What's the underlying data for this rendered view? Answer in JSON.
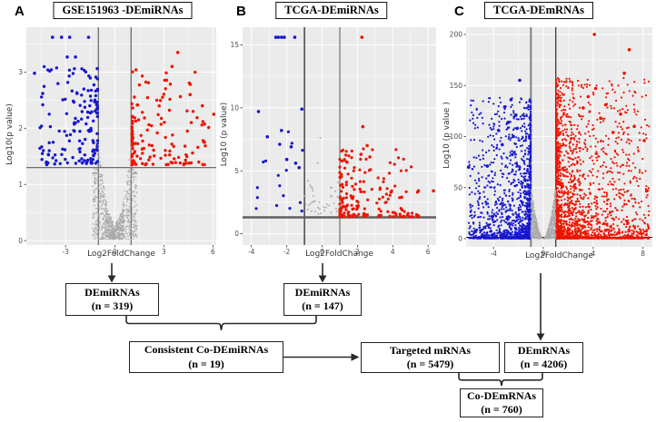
{
  "chart_data": [
    {
      "type": "scatter",
      "subtype": "volcano",
      "panel_label": "A",
      "title": "GSE151963 -DEmiRNAs",
      "xlabel": "Log2FoldChange",
      "ylabel": "Log10(p value)",
      "xlim": [
        -5.4,
        6.2
      ],
      "ylim": [
        -0.08,
        3.8
      ],
      "xticks": [
        -3,
        0,
        3,
        6
      ],
      "yticks": [
        0,
        1,
        2,
        3
      ],
      "grid": "on",
      "thresholds": {
        "vlines": [
          {
            "x": -1,
            "color": "#6e6e6e",
            "w": 1.3
          },
          {
            "x": 1,
            "color": "#6e6e6e",
            "w": 1.3
          }
        ],
        "hline": {
          "y": 1.3,
          "color": "#6e6e6e",
          "w": 1.3
        }
      },
      "colors": {
        "up": "#ee1400",
        "down": "#1717cf",
        "ns": "#ababab",
        "panel_bg": "#ebebeb",
        "grid": "#ffffff"
      },
      "clouds": [
        {
          "cls": "down",
          "n": 150,
          "x0": -4.6,
          "x1": -1.05,
          "side": "left",
          "xpow": 1.9,
          "y0": 1.35,
          "y1": 3.1,
          "ypow": 1.6,
          "r": 1.7
        },
        {
          "cls": "up",
          "n": 140,
          "x0": 1.05,
          "x1": 5.9,
          "side": "right",
          "xpow": 2.3,
          "y0": 1.35,
          "y1": 3.05,
          "ypow": 1.7,
          "r": 1.7
        },
        {
          "cls": "ns",
          "n": 700,
          "funnel": true,
          "xclip": 1.35,
          "xbias": 0.55,
          "y0": 0.02,
          "y1": 2.6,
          "upow": 1.2,
          "vpow": 1.4,
          "r": 0.8
        },
        {
          "cls": "ns",
          "n": 330,
          "funnel": true,
          "xclip": 0.55,
          "xbias": 1.3,
          "y0": 0.02,
          "y1": 0.55,
          "upow": 1.0,
          "vpow": 0.3,
          "r": 0.8
        }
      ],
      "highlights": {
        "down": [
          [
            -3.8,
            3.62
          ],
          [
            -3.25,
            3.62
          ],
          [
            -2.75,
            3.62
          ],
          [
            -1.6,
            3.62
          ],
          [
            -2.9,
            3.27
          ],
          [
            -2.4,
            3.27
          ],
          [
            -4.9,
            2.98
          ],
          [
            -4.4,
            2.62
          ]
        ],
        "up": [
          [
            3.85,
            3.35
          ],
          [
            3.5,
            3.1
          ],
          [
            6.05,
            2.25
          ],
          [
            5.35,
            2.4
          ],
          [
            4.6,
            2.6
          ]
        ],
        "ns": []
      }
    },
    {
      "type": "scatter",
      "subtype": "volcano",
      "panel_label": "B",
      "title": "TCGA-DEmiRNAs",
      "xlabel": "Log2FoldChange",
      "ylabel": "Log10 (p value)",
      "xlim": [
        -4.5,
        6.45
      ],
      "ylim": [
        -0.9,
        16.4
      ],
      "xticks": [
        -4,
        -2,
        0,
        2,
        4,
        6
      ],
      "yticks": [
        0,
        5,
        10,
        15
      ],
      "grid": "on",
      "thresholds": {
        "vlines": [
          {
            "x": -1,
            "color": "#2b2b2b",
            "w": 1.3
          },
          {
            "x": 1,
            "color": "#9a9a9a",
            "w": 1.8
          }
        ],
        "hline": {
          "y": 1.3,
          "color": "#5f5f5f",
          "w": 2.4
        }
      },
      "colors": {
        "up": "#ee1400",
        "down": "#1717cf",
        "ns": "#ababab",
        "panel_bg": "#ebebeb",
        "grid": "#ffffff"
      },
      "clouds": [
        {
          "cls": "down",
          "n": 16,
          "x0": -3.8,
          "x1": -1.1,
          "side": "left",
          "xpow": 1.2,
          "y0": 1.8,
          "y1": 8.3,
          "ypow": 1.4,
          "r": 1.6
        },
        {
          "cls": "up",
          "n": 175,
          "x0": 1.0,
          "x1": 5.5,
          "side": "right",
          "xpow": 2.5,
          "y0": 1.35,
          "y1": 6.8,
          "ypow": 2.6,
          "r": 1.6
        },
        {
          "cls": "ns",
          "n": 38,
          "funnel": true,
          "xclip": 1.0,
          "xbias": 0.8,
          "y0": 1.1,
          "y1": 4.8,
          "upow": 1.0,
          "vpow": 0.5,
          "r": 1.0
        }
      ],
      "highlights": {
        "down": [
          [
            -2.62,
            15.6
          ],
          [
            -2.48,
            15.6
          ],
          [
            -2.3,
            15.6
          ],
          [
            -2.14,
            15.6
          ],
          [
            -1.55,
            15.6
          ],
          [
            -3.6,
            9.7
          ],
          [
            -1.15,
            9.9
          ],
          [
            -2.3,
            8.2
          ],
          [
            -3.1,
            7.7
          ],
          [
            -2.4,
            7.1
          ],
          [
            -1.75,
            6.9
          ],
          [
            -2.0,
            5.9
          ],
          [
            -1.5,
            5.6
          ],
          [
            -1.3,
            5.25
          ]
        ],
        "up": [
          [
            2.25,
            15.6
          ],
          [
            2.3,
            8.5
          ],
          [
            2.55,
            7.0
          ],
          [
            2.2,
            6.3
          ],
          [
            2.7,
            6.1
          ],
          [
            5.45,
            3.4
          ],
          [
            6.3,
            3.4
          ],
          [
            5.35,
            1.5
          ],
          [
            4.5,
            2.9
          ],
          [
            3.9,
            3.3
          ]
        ],
        "ns": [
          [
            -0.1,
            7.6
          ],
          [
            -0.25,
            5.6
          ],
          [
            -0.8,
            4.2
          ]
        ]
      }
    },
    {
      "type": "scatter",
      "subtype": "volcano",
      "panel_label": "C",
      "title": "TCGA-DEmRNAs",
      "xlabel": "Log2FoldChange",
      "ylabel": "Log10 (p value )",
      "xlim": [
        -6.2,
        8.75
      ],
      "ylim": [
        -8,
        207
      ],
      "xticks": [
        -4,
        0,
        4,
        8
      ],
      "yticks": [
        0,
        50,
        100,
        150,
        200
      ],
      "grid": "on",
      "thresholds": {
        "vlines": [
          {
            "x": -1,
            "color": "#8a8a8a",
            "w": 2.2
          },
          {
            "x": 1,
            "color": "#2b2b2b",
            "w": 1.2
          }
        ],
        "hline": {
          "y": 1.3,
          "color": "#1a1a1a",
          "w": 1.0
        }
      },
      "colors": {
        "up": "#ee1400",
        "down": "#1717cf",
        "ns": "#ababab",
        "panel_bg": "#ebebeb",
        "grid": "#ffffff"
      },
      "clouds": [
        {
          "cls": "down",
          "n": 1500,
          "x0": -6.0,
          "x1": -1.02,
          "side": "left",
          "xpow": 2.6,
          "y0": 0.3,
          "y1": 138,
          "ypow": 3.1,
          "r": 1.1
        },
        {
          "cls": "up",
          "n": 2200,
          "x0": 1.02,
          "x1": 8.5,
          "side": "right",
          "xpow": 2.7,
          "y0": 0.3,
          "y1": 158,
          "ypow": 3.1,
          "r": 1.1
        },
        {
          "cls": "ns",
          "n": 800,
          "funnel": true,
          "xclip": 1.0,
          "xbias": 0.5,
          "y0": 0.1,
          "y1": 52,
          "upow": 1.0,
          "vpow": 1.8,
          "r": 0.8
        }
      ],
      "highlights": {
        "down": [
          [
            -1.9,
            155
          ],
          [
            -2.6,
            136
          ],
          [
            -3.1,
            129
          ],
          [
            -2.2,
            121
          ],
          [
            -2.8,
            114
          ],
          [
            -3.6,
            106
          ],
          [
            -2.4,
            100
          ],
          [
            -4.5,
            71
          ],
          [
            -6.0,
            70
          ],
          [
            -3.3,
            92
          ],
          [
            -2.1,
            108
          ]
        ],
        "up": [
          [
            4.1,
            200
          ],
          [
            6.9,
            185
          ],
          [
            6.5,
            162
          ],
          [
            4.2,
            147
          ],
          [
            3.6,
            139
          ],
          [
            5.0,
            131
          ],
          [
            6.2,
            122
          ],
          [
            7.3,
            110
          ],
          [
            8.1,
            96
          ],
          [
            4.6,
            118
          ],
          [
            3.2,
            128
          ],
          [
            5.6,
            104
          ]
        ],
        "ns": []
      }
    }
  ],
  "flowchart": {
    "boxes": [
      {
        "line1": "DEmiRNAs",
        "line2": "(n = 319)"
      },
      {
        "line1": "DEmiRNAs",
        "line2": "(n = 147)"
      },
      {
        "line1": "Consistent Co-DEmiRNAs",
        "line2": "(n = 19)"
      },
      {
        "line1": "Targeted mRNAs",
        "line2": "(n = 5479)"
      },
      {
        "line1": "DEmRNAs",
        "line2": "(n = 4206)"
      },
      {
        "line1": "Co-DEmRNAs",
        "line2": "(n = 760)"
      }
    ]
  }
}
